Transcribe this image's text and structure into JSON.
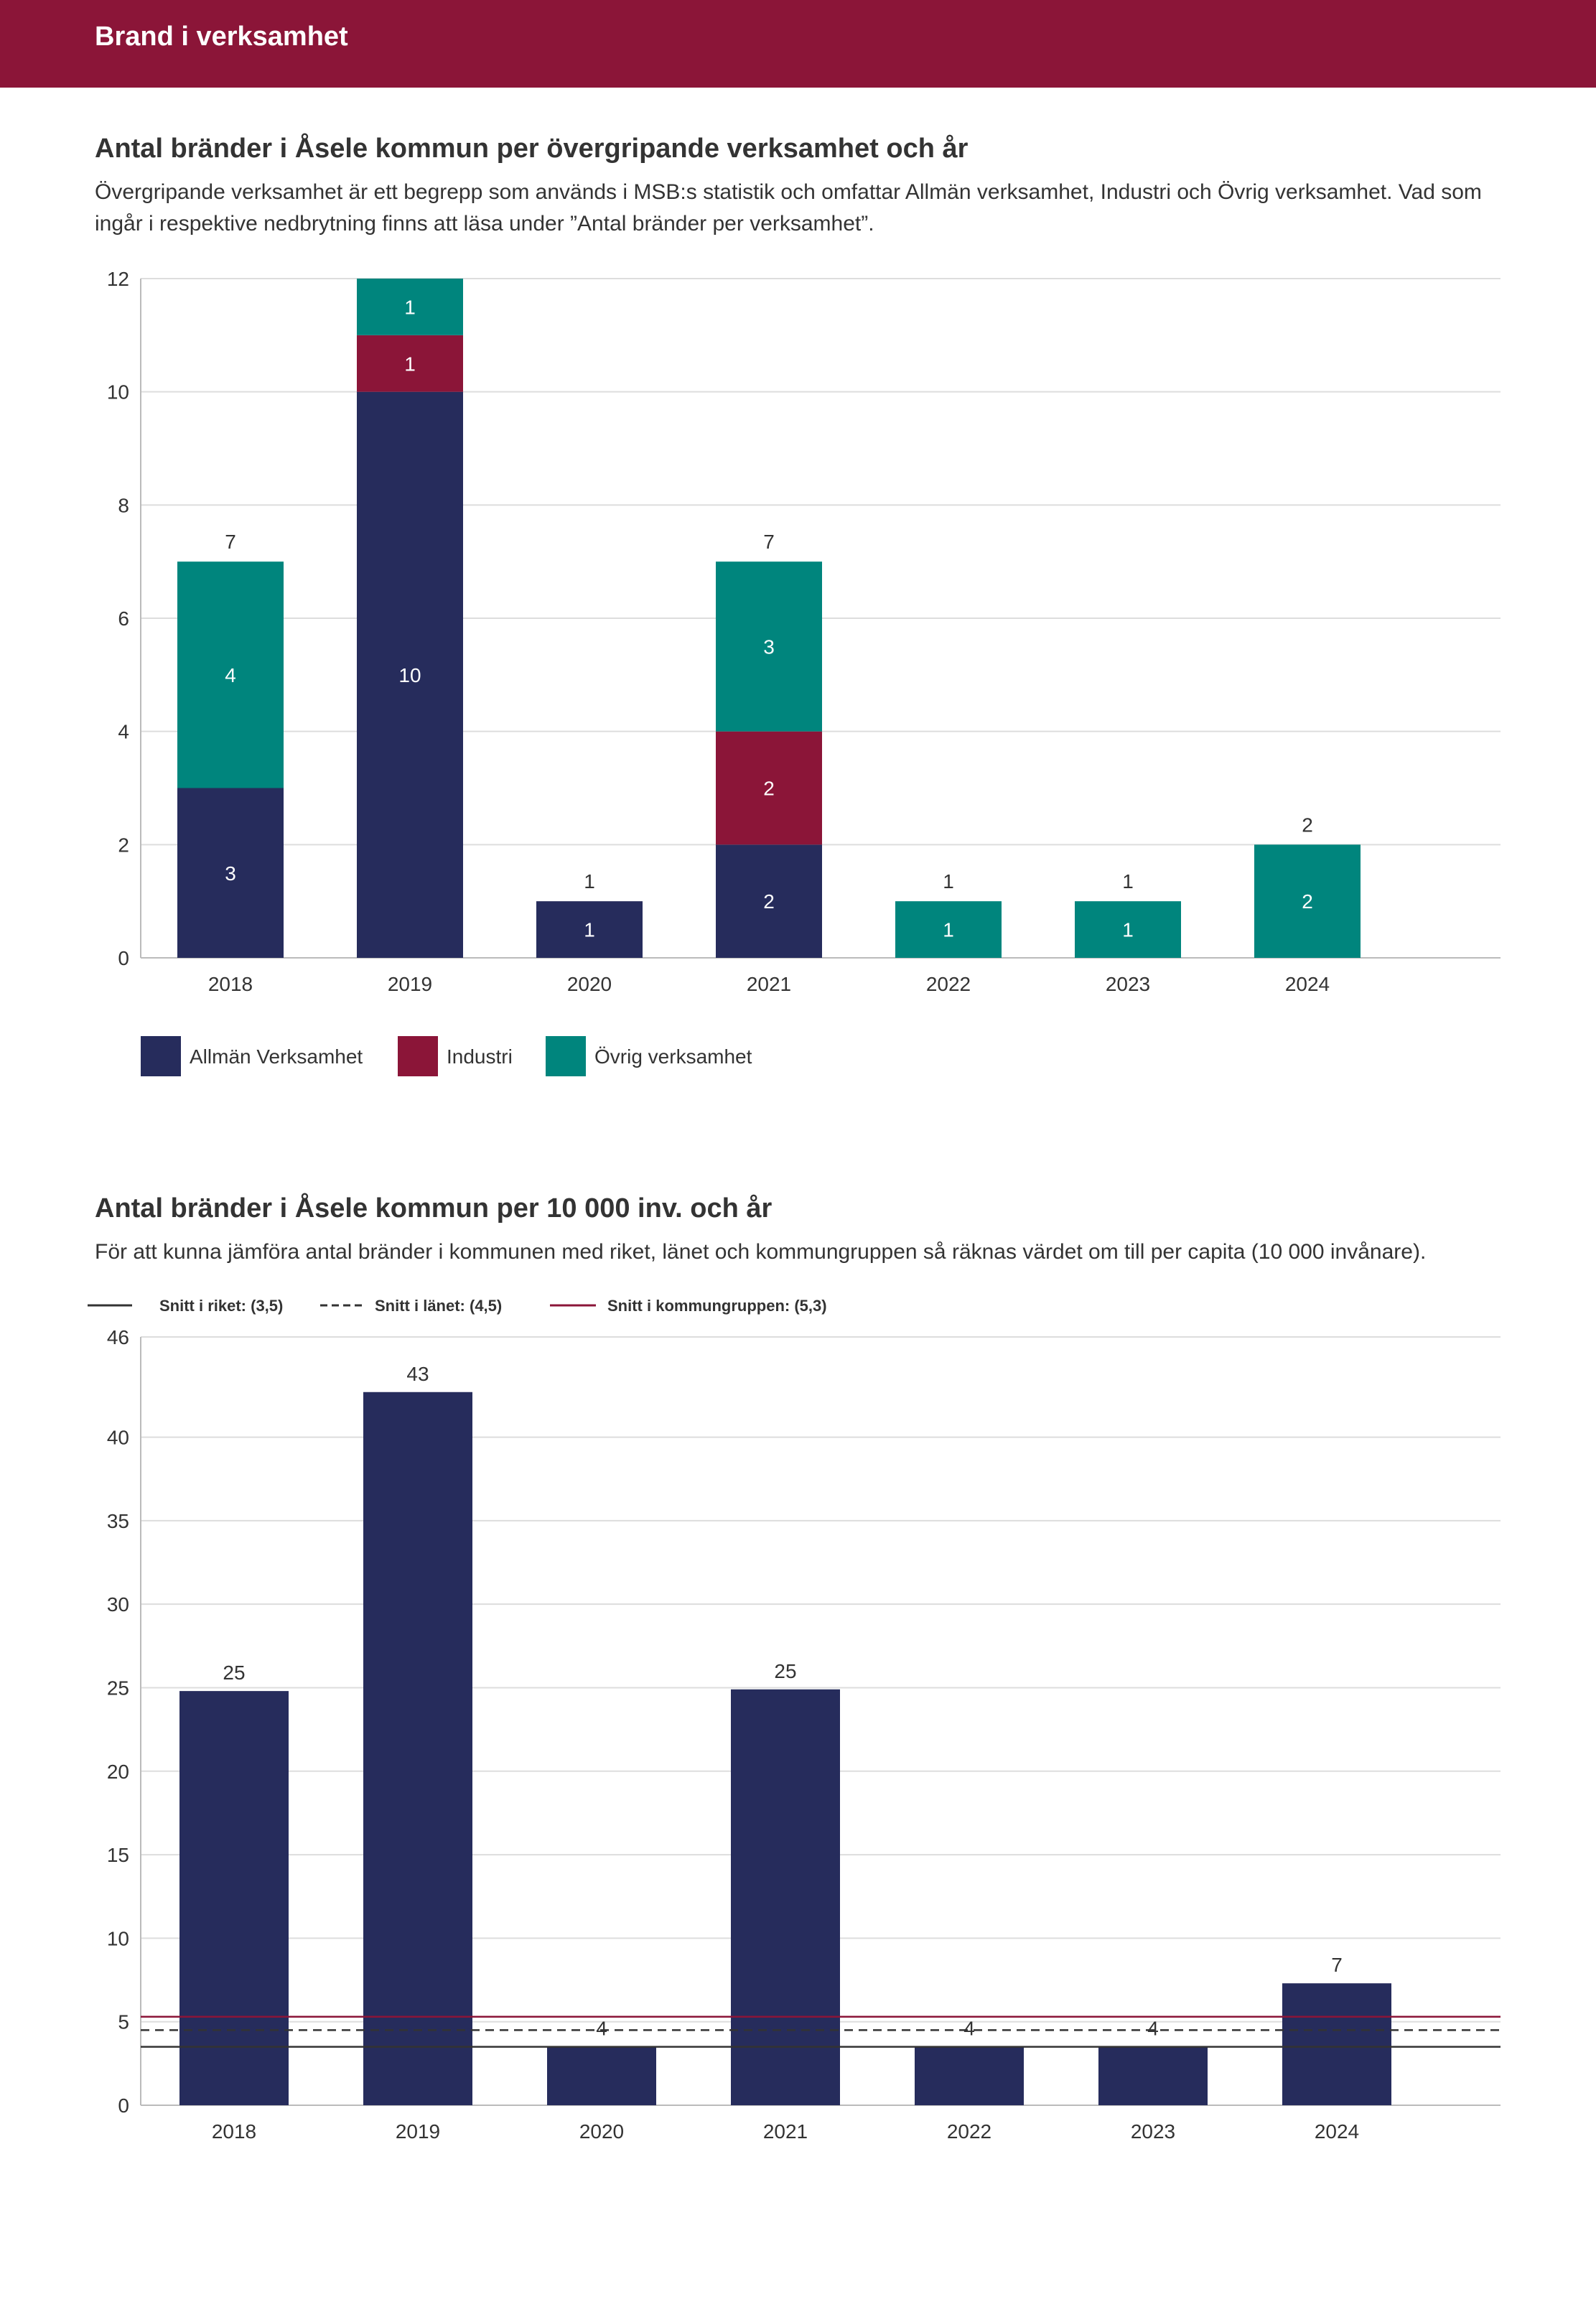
{
  "header": {
    "title": "Brand i verksamhet"
  },
  "section1": {
    "title": "Antal bränder i Åsele kommun per övergripande verksamhet och år",
    "description": "Övergripande verksamhet är ett begrepp som används i MSB:s statistik och omfattar Allmän verksamhet, Industri och Övrig verksamhet. Vad som ingår i respektive nedbrytning finns att läsa under ”Antal bränder per verksamhet”."
  },
  "section2": {
    "title": "Antal bränder i Åsele kommun per 10 000 inv. och år",
    "description": "För att kunna jämföra antal bränder i kommunen med riket, länet och kommungruppen så räknas värdet om till per capita (10 000 invånare)."
  },
  "chart_data": [
    {
      "type": "bar",
      "stacked": true,
      "title": "Antal bränder i Åsele kommun per övergripande verksamhet och år",
      "categories": [
        "2018",
        "2019",
        "2020",
        "2021",
        "2022",
        "2023",
        "2024"
      ],
      "series": [
        {
          "name": "Allmän Verksamhet",
          "color": "#262c5c",
          "values": [
            3,
            10,
            1,
            2,
            0,
            0,
            0
          ]
        },
        {
          "name": "Industri",
          "color": "#8b1538",
          "values": [
            0,
            1,
            0,
            2,
            0,
            0,
            0
          ]
        },
        {
          "name": "Övrig verksamhet",
          "color": "#00857d",
          "values": [
            4,
            1,
            0,
            3,
            1,
            1,
            2
          ]
        }
      ],
      "totals": [
        7,
        null,
        1,
        7,
        1,
        1,
        2
      ],
      "ylim": [
        0,
        12
      ],
      "yticks": [
        0,
        2,
        4,
        6,
        8,
        10,
        12
      ],
      "grid": true,
      "legend": "bottom-left"
    },
    {
      "type": "bar",
      "title": "Antal bränder i Åsele kommun per 10 000 inv. och år",
      "categories": [
        "2018",
        "2019",
        "2020",
        "2021",
        "2022",
        "2023",
        "2024"
      ],
      "values": [
        25,
        43,
        4,
        25,
        4,
        4,
        7
      ],
      "labels": [
        "25",
        "43",
        "4",
        "25",
        "4",
        "4",
        "7"
      ],
      "bar_color": "#262c5c",
      "reference_lines": [
        {
          "label": "Snitt i riket: (3,5)",
          "value": 3.5,
          "style": "solid",
          "color": "#333333"
        },
        {
          "label": "Snitt i länet: (4,5)",
          "value": 4.5,
          "style": "dashed",
          "color": "#333333"
        },
        {
          "label": "Snitt i kommungruppen: (5,3)",
          "value": 5.3,
          "style": "solid",
          "color": "#8b1538"
        }
      ],
      "ylim": [
        0,
        46
      ],
      "yticks": [
        0,
        5,
        10,
        15,
        20,
        25,
        30,
        35,
        40,
        46
      ],
      "grid": true,
      "legend": "top-left"
    }
  ]
}
